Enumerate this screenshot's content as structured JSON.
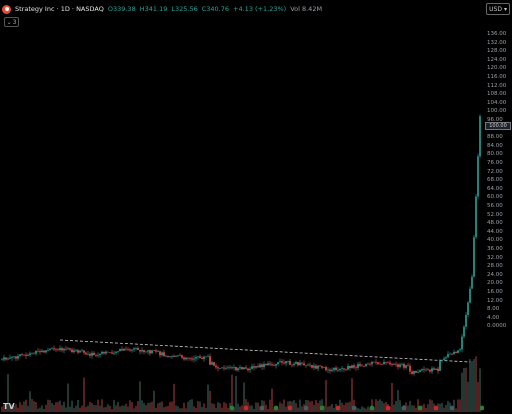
{
  "header": {
    "symbol": "Strategy Inc · 1D · NASDAQ",
    "open": "O339.38",
    "high": "H341.19",
    "low": "L325.56",
    "close": "C340.76",
    "change": "+4.13 (+1.23%)",
    "volume": "Vol 8.42M"
  },
  "toolbar": {
    "indicators_count": "3",
    "currency": "USD"
  },
  "axis": {
    "ticks": [
      "136.00",
      "132.00",
      "128.00",
      "124.00",
      "120.00",
      "116.00",
      "112.00",
      "108.00",
      "104.00",
      "100.00",
      "96.00",
      "92.00",
      "88.00",
      "84.00",
      "80.00",
      "76.00",
      "72.00",
      "68.00",
      "64.00",
      "60.00",
      "56.00",
      "52.00",
      "48.00",
      "44.00",
      "40.00",
      "36.00",
      "32.00",
      "28.00",
      "24.00",
      "20.00",
      "16.00",
      "12.00",
      "8.00",
      "4.00",
      "0.0000"
    ],
    "price_badge": "100.00"
  },
  "colors": {
    "up": "#26a69a",
    "down": "#ef5350",
    "trend": "#cfcfcf",
    "brand": "#e84b2f"
  },
  "watermark": "TV"
}
